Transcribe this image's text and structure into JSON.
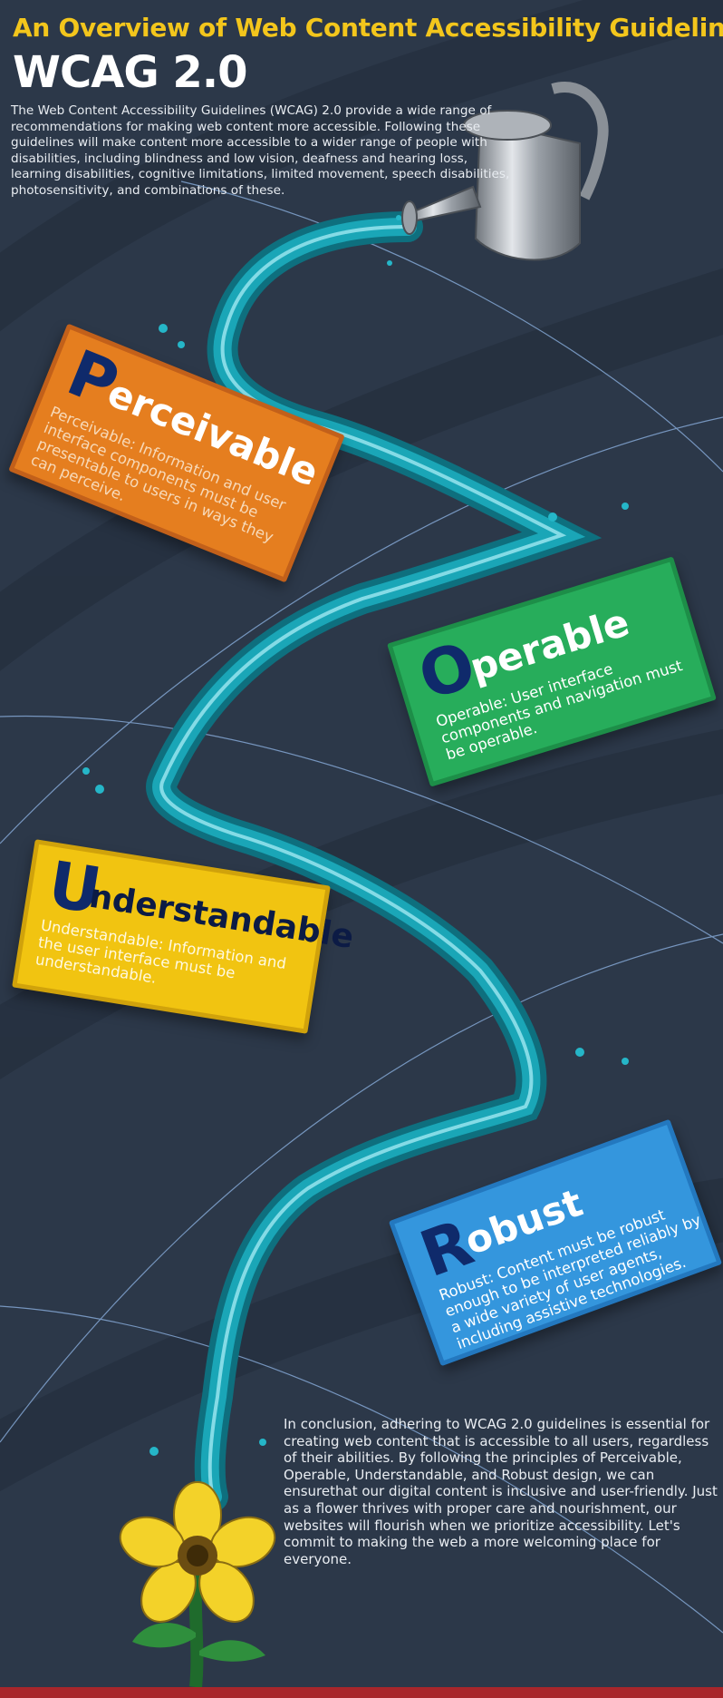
{
  "header": {
    "title": "An Overview of Web Content Accessibility Guidelines",
    "subtitle": "WCAG 2.0",
    "intro": "The Web Content Accessibility Guidelines (WCAG) 2.0 provide a wide range of recommendations for making web content more accessible. Following these guidelines will make content more accessible to a wider range of people with disabilities, including blindness and low vision, deafness and hearing loss, learning disabilities, cognitive limitations, limited movement, speech disabilities, photosensitivity, and combinations of these."
  },
  "principles": [
    {
      "letter": "P",
      "word": "erceivable",
      "description": "Perceivable: Information and user interface components must be presentable to users in ways they can perceive.",
      "color": "#e57e1f"
    },
    {
      "letter": "O",
      "word": "perable",
      "description": "Operable: User interface components and navigation must be operable.",
      "color": "#27ad5b"
    },
    {
      "letter": "U",
      "word": "nderstandable",
      "description": "Understandable: Information and the user interface must be understandable.",
      "color": "#f1c411"
    },
    {
      "letter": "R",
      "word": "obust",
      "description": "Robust: Content must be robust enough to be interpreted reliably by a wide variety of user agents, including assistive technologies.",
      "color": "#3496dd"
    }
  ],
  "conclusion": "In conclusion, adhering to WCAG 2.0 guidelines is essential for creating web content that is accessible to all users, regardless of their abilities. By following the principles of Perceivable, Operable, Understandable, and Robust design, we can ensurethat our digital content is inclusive and user-friendly. Just as a flower thrives with proper care and nourishment, our websites will flourish when we prioritize accessibility. Let's commit to making the web a more welcoming place for everyone.",
  "illustrations": {
    "watering_can": "watering-can-icon",
    "water_stream": "water-stream-icon",
    "flower": "flower-icon"
  },
  "colors": {
    "background": "#2c3849",
    "title": "#f3c61c",
    "water": "#1aa6b7",
    "letter": "#0f2a6b",
    "bottom_bar": "#a8262b"
  }
}
